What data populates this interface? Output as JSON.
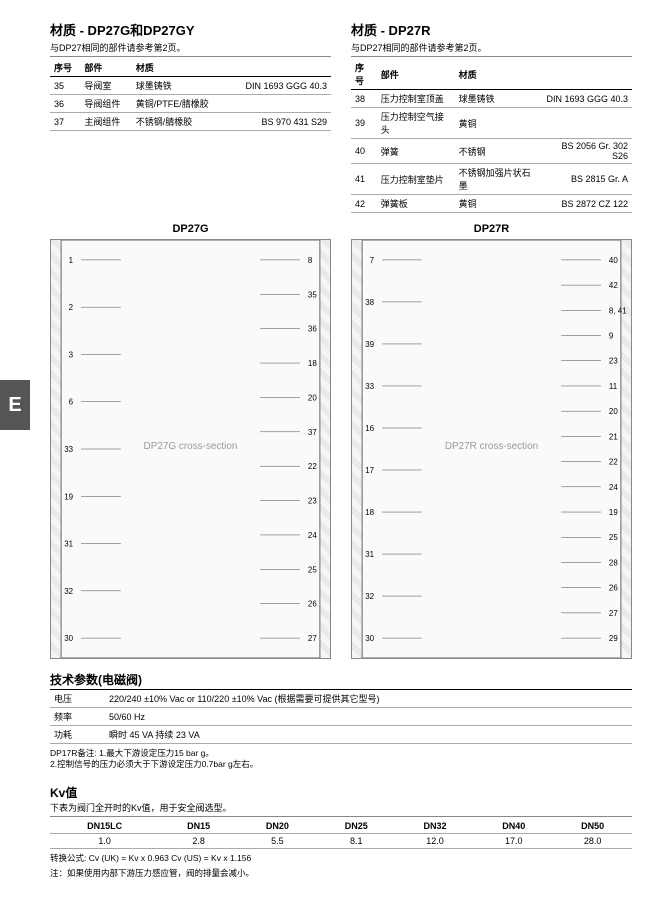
{
  "sideTab": "E",
  "left": {
    "title": "材质 - DP27G和DP27GY",
    "subnote": "与DP27相同的部件请参考第2页。",
    "headers": [
      "序号",
      "部件",
      "材质",
      ""
    ],
    "rows": [
      [
        "35",
        "导阀室",
        "球墨铸铁",
        "DIN 1693 GGG 40.3"
      ],
      [
        "36",
        "导阀组件",
        "黄铜/PTFE/腈橡胶",
        ""
      ],
      [
        "37",
        "主阀组件",
        "不锈钢/腈橡胶",
        "BS 970 431 S29"
      ]
    ],
    "diagramTitle": "DP27G",
    "diagramLabelsLeft": [
      "1",
      "2",
      "3",
      "6",
      "33",
      "19",
      "31",
      "32",
      "30"
    ],
    "diagramLabelsRight": [
      "8",
      "35",
      "36",
      "18",
      "20",
      "37",
      "22",
      "23",
      "24",
      "25",
      "26",
      "27"
    ]
  },
  "right": {
    "title": "材质 - DP27R",
    "subnote": "与DP27相同的部件请参考第2页。",
    "headers": [
      "序号",
      "部件",
      "材质",
      ""
    ],
    "rows": [
      [
        "38",
        "压力控制室顶盖",
        "球墨铸铁",
        "DIN 1693 GGG 40.3"
      ],
      [
        "39",
        "压力控制空气接头",
        "黄铜",
        ""
      ],
      [
        "40",
        "弹簧",
        "不锈钢",
        "BS 2056 Gr. 302 S26"
      ],
      [
        "41",
        "压力控制室垫片",
        "不锈钢加强片状石墨",
        "BS 2815 Gr. A"
      ],
      [
        "42",
        "弹簧板",
        "黄铜",
        "BS 2872 CZ 122"
      ]
    ],
    "diagramTitle": "DP27R",
    "diagramLabelsLeft": [
      "7",
      "38",
      "39",
      "33",
      "16",
      "17",
      "18",
      "31",
      "32",
      "30"
    ],
    "diagramLabelsRight": [
      "40",
      "42",
      "8, 41",
      "9",
      "23",
      "11",
      "20",
      "21",
      "22",
      "24",
      "19",
      "25",
      "28",
      "26",
      "27",
      "29"
    ]
  },
  "tech": {
    "title": "技术参数(电磁阀)",
    "rows": [
      [
        "电压",
        "220/240  ±10% Vac or 110/220  ±10% Vac  (根据需要可提供其它型号)"
      ],
      [
        "频率",
        "50/60 Hz"
      ],
      [
        "功耗",
        "瞬时  45 VA          持续  23 VA"
      ]
    ],
    "note": "DP17R备注:  1.最大下游设定压力15 bar g。\n                    2.控制信号的压力必须大于下游设定压力0.7bar g左右。"
  },
  "kv": {
    "title": "Kv值",
    "sub": "下表为阀门全开时的Kv值，用于安全阀选型。",
    "headers": [
      "DN15LC",
      "DN15",
      "DN20",
      "DN25",
      "DN32",
      "DN40",
      "DN50"
    ],
    "values": [
      "1.0",
      "2.8",
      "5.5",
      "8.1",
      "12.0",
      "17.0",
      "28.0"
    ],
    "footnote1": "转换公式: Cv (UK) = Kv x 0.963     Cv (US) = Kv x 1.156",
    "footnote2": "注：如果使用内部下游压力感应管，阀的排量会减小。"
  }
}
